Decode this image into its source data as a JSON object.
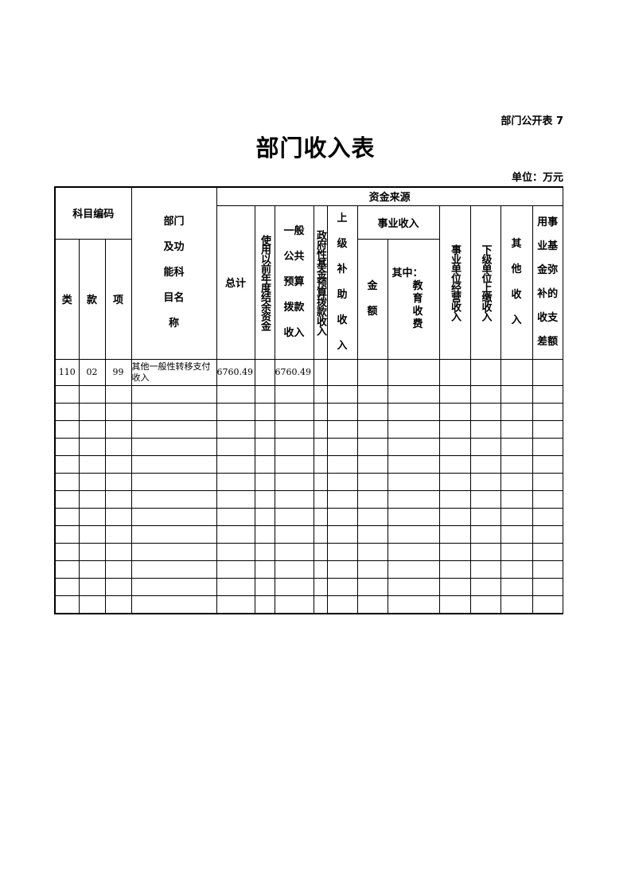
{
  "page_code": "部门公开表 7",
  "title": "部门收入表",
  "unit": "单位：万元",
  "header": {
    "subject_code": "科目编码",
    "dept_name": "部门\n及功\n能科\n目名\n称",
    "lei": "类",
    "kuan": "款",
    "xiang": "项",
    "fund_source": "资金来源",
    "total": "总计",
    "prev_balance": "使用以前年度结余资金",
    "general_budget": "一般\n公共\n预算\n拨款\n收入",
    "gov_fund": "政府性基金预算拨款收入",
    "superior_subsidy": "上\n级\n补\n助\n收\n入",
    "business_income": "事业收入",
    "amount": "金\n\n额",
    "of_which_edu": "其中：\n教\n育\n收\n费",
    "operating_income": "事业单位经营收入",
    "subordinate_income": "下级单位上缴收入",
    "other_income": "其\n\n他\n\n收\n\n入",
    "reserve_fund": "用事\n业基\n金弥\n补的\n收支\n差额"
  },
  "rows": [
    {
      "lei": "110",
      "kuan": "02",
      "xiang": "99",
      "name": "其他一般性转移支付收入",
      "total": "6760.49",
      "prev_balance": "",
      "general_budget": "6760.49",
      "gov_fund": "",
      "superior_subsidy": "",
      "amount": "",
      "edu": "",
      "operating": "",
      "subordinate": "",
      "other": "",
      "reserve": ""
    }
  ]
}
